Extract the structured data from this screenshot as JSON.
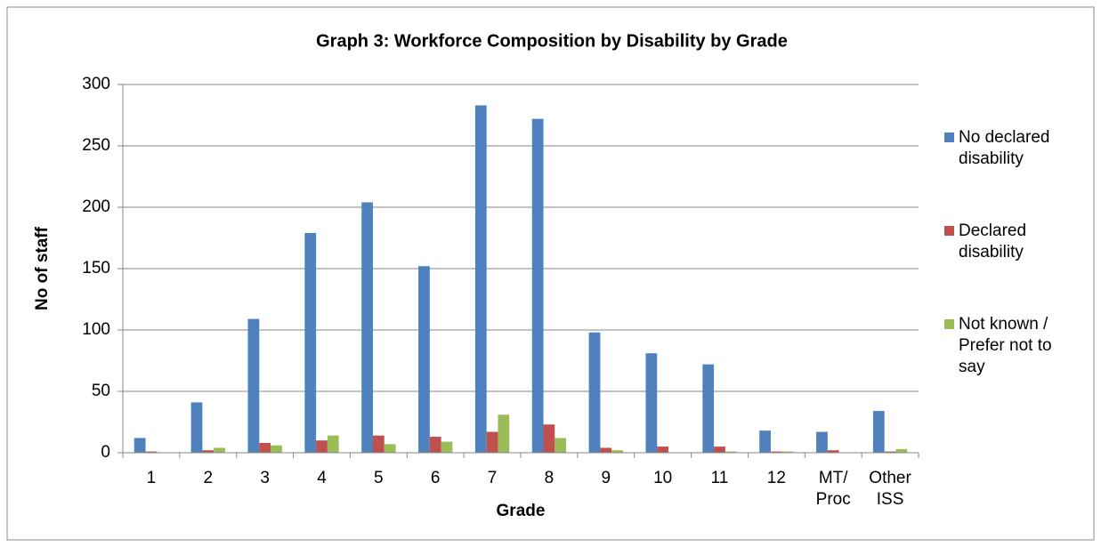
{
  "chart_data": {
    "type": "bar",
    "title": "Graph 3: Workforce Composition by Disability by Grade",
    "xlabel": "Grade",
    "ylabel": "No of staff",
    "categories": [
      "1",
      "2",
      "3",
      "4",
      "5",
      "6",
      "7",
      "8",
      "9",
      "10",
      "11",
      "12",
      "MT/ Proc",
      "Other ISS"
    ],
    "series": [
      {
        "name": "No declared disability",
        "color": "#4f81bd",
        "values": [
          12,
          41,
          109,
          179,
          204,
          152,
          283,
          272,
          98,
          81,
          72,
          18,
          17,
          34
        ]
      },
      {
        "name": "Declared disability",
        "color": "#c0504d",
        "values": [
          1,
          2,
          8,
          10,
          14,
          13,
          17,
          23,
          4,
          5,
          5,
          1,
          2,
          1
        ]
      },
      {
        "name": "Not known / Prefer not to say",
        "color": "#9bbb59",
        "values": [
          0,
          4,
          6,
          14,
          7,
          9,
          31,
          12,
          2,
          0,
          1,
          1,
          0,
          3
        ]
      }
    ],
    "ylim": [
      0,
      300
    ],
    "yticks": [
      0,
      50,
      100,
      150,
      200,
      250,
      300
    ],
    "grid": true,
    "legend": "right"
  }
}
